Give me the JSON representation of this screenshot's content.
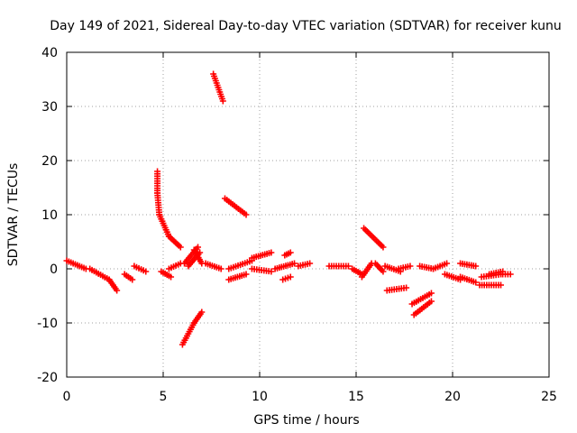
{
  "chart_data": {
    "type": "scatter",
    "title": "Day 149 of 2021, Sidereal Day-to-day VTEC variation (SDTVAR) for receiver kunu",
    "xlabel": "GPS time / hours",
    "ylabel": "SDTVAR / TECUs",
    "xlim": [
      0,
      25
    ],
    "ylim": [
      -20,
      40
    ],
    "xticks": [
      "0",
      "5",
      "10",
      "15",
      "20",
      "25"
    ],
    "yticks": [
      "-20",
      "-10",
      "0",
      "10",
      "20",
      "30",
      "40"
    ],
    "grid": true,
    "marker": "plus",
    "color": "#ff0000",
    "segments": [
      {
        "x0": 0.0,
        "x1": 1.0,
        "y0": 1.5,
        "y1": 0.0
      },
      {
        "x0": 1.2,
        "x1": 2.2,
        "y0": 0.0,
        "y1": -2.0
      },
      {
        "x0": 2.2,
        "x1": 2.6,
        "y0": -2.0,
        "y1": -4.0
      },
      {
        "x0": 3.0,
        "x1": 3.4,
        "y0": -1.0,
        "y1": -2.0
      },
      {
        "x0": 3.5,
        "x1": 4.1,
        "y0": 0.5,
        "y1": -0.5
      },
      {
        "x0": 4.7,
        "x1": 4.7,
        "y0": 18.0,
        "y1": 14.0
      },
      {
        "x0": 4.7,
        "x1": 4.8,
        "y0": 14.0,
        "y1": 10.0
      },
      {
        "x0": 4.8,
        "x1": 5.3,
        "y0": 10.0,
        "y1": 6.0
      },
      {
        "x0": 5.3,
        "x1": 5.9,
        "y0": 6.0,
        "y1": 4.0
      },
      {
        "x0": 4.9,
        "x1": 5.4,
        "y0": -0.5,
        "y1": -1.5
      },
      {
        "x0": 5.3,
        "x1": 5.9,
        "y0": 0.0,
        "y1": 1.0
      },
      {
        "x0": 6.0,
        "x1": 6.6,
        "y0": -14.0,
        "y1": -10.0
      },
      {
        "x0": 6.6,
        "x1": 7.0,
        "y0": -10.0,
        "y1": -8.0
      },
      {
        "x0": 6.1,
        "x1": 6.8,
        "y0": 1.0,
        "y1": 4.0
      },
      {
        "x0": 6.3,
        "x1": 6.9,
        "y0": 0.5,
        "y1": 3.0
      },
      {
        "x0": 6.6,
        "x1": 7.0,
        "y0": 3.5,
        "y1": 1.0
      },
      {
        "x0": 7.2,
        "x1": 8.0,
        "y0": 1.0,
        "y1": 0.0
      },
      {
        "x0": 7.6,
        "x1": 8.1,
        "y0": 36.0,
        "y1": 31.0
      },
      {
        "x0": 8.2,
        "x1": 9.3,
        "y0": 13.0,
        "y1": 10.0
      },
      {
        "x0": 8.4,
        "x1": 9.6,
        "y0": 0.0,
        "y1": 1.5
      },
      {
        "x0": 8.4,
        "x1": 9.3,
        "y0": -2.0,
        "y1": -1.0
      },
      {
        "x0": 9.6,
        "x1": 10.6,
        "y0": 2.0,
        "y1": 3.0
      },
      {
        "x0": 9.6,
        "x1": 10.6,
        "y0": 0.0,
        "y1": -0.5
      },
      {
        "x0": 10.8,
        "x1": 11.8,
        "y0": 0.0,
        "y1": 1.0
      },
      {
        "x0": 11.3,
        "x1": 11.6,
        "y0": 2.5,
        "y1": 3.0
      },
      {
        "x0": 11.2,
        "x1": 11.6,
        "y0": -2.0,
        "y1": -1.5
      },
      {
        "x0": 12.0,
        "x1": 12.6,
        "y0": 0.5,
        "y1": 1.0
      },
      {
        "x0": 13.6,
        "x1": 14.6,
        "y0": 0.5,
        "y1": 0.5
      },
      {
        "x0": 14.8,
        "x1": 15.3,
        "y0": 0.0,
        "y1": -1.0
      },
      {
        "x0": 15.3,
        "x1": 15.8,
        "y0": -1.5,
        "y1": 1.0
      },
      {
        "x0": 15.4,
        "x1": 16.4,
        "y0": 7.5,
        "y1": 4.0
      },
      {
        "x0": 16.0,
        "x1": 16.4,
        "y0": 1.0,
        "y1": -0.5
      },
      {
        "x0": 16.5,
        "x1": 17.3,
        "y0": 0.5,
        "y1": -0.5
      },
      {
        "x0": 16.6,
        "x1": 17.6,
        "y0": -4.0,
        "y1": -3.5
      },
      {
        "x0": 17.2,
        "x1": 17.8,
        "y0": 0.0,
        "y1": 0.5
      },
      {
        "x0": 17.9,
        "x1": 18.9,
        "y0": -6.5,
        "y1": -4.5
      },
      {
        "x0": 18.0,
        "x1": 18.9,
        "y0": -8.5,
        "y1": -6.0
      },
      {
        "x0": 18.3,
        "x1": 19.0,
        "y0": 0.5,
        "y1": 0.0
      },
      {
        "x0": 19.0,
        "x1": 19.7,
        "y0": 0.0,
        "y1": 1.0
      },
      {
        "x0": 19.6,
        "x1": 20.4,
        "y0": -1.0,
        "y1": -2.0
      },
      {
        "x0": 20.4,
        "x1": 21.2,
        "y0": 1.0,
        "y1": 0.5
      },
      {
        "x0": 20.4,
        "x1": 21.2,
        "y0": -1.5,
        "y1": -2.5
      },
      {
        "x0": 21.4,
        "x1": 22.5,
        "y0": -3.0,
        "y1": -3.0
      },
      {
        "x0": 21.5,
        "x1": 22.5,
        "y0": -1.5,
        "y1": -1.0
      },
      {
        "x0": 21.9,
        "x1": 22.6,
        "y0": -1.0,
        "y1": -0.5
      },
      {
        "x0": 22.6,
        "x1": 23.0,
        "y0": -1.0,
        "y1": -1.0
      }
    ]
  }
}
